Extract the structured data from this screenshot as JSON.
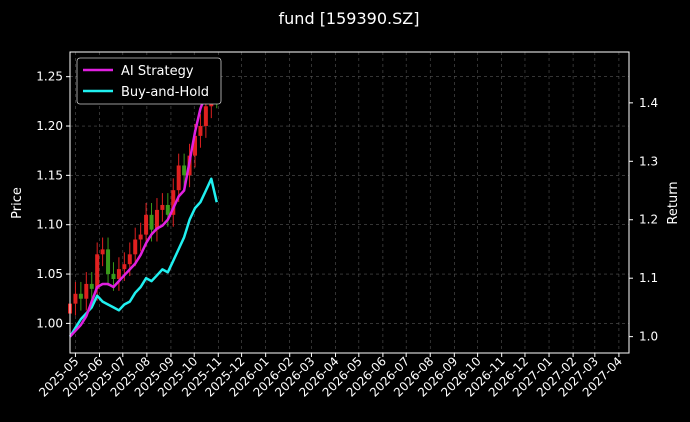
{
  "chart_data": {
    "type": "line",
    "title": "fund [159390.SZ]",
    "ylabel": "Price",
    "y2label": "Return",
    "ylim": [
      0.97,
      1.275
    ],
    "y2lim": [
      0.972,
      1.487
    ],
    "yticks": [
      1.0,
      1.05,
      1.1,
      1.15,
      1.2,
      1.25
    ],
    "y2ticks": [
      1.0,
      1.1,
      1.2,
      1.3,
      1.4
    ],
    "xlim": [
      "2025-04-24",
      "2027-04-14"
    ],
    "xticks": [
      "2025-05",
      "2025-06",
      "2025-07",
      "2025-08",
      "2025-09",
      "2025-10",
      "2025-11",
      "2025-12",
      "2026-01",
      "2026-02",
      "2026-03",
      "2026-04",
      "2026-05",
      "2026-06",
      "2026-07",
      "2026-08",
      "2026-09",
      "2026-10",
      "2026-11",
      "2026-12",
      "2027-01",
      "2027-02",
      "2027-03",
      "2027-04"
    ],
    "grid": true,
    "legend_position": "top-left",
    "colors": {
      "background": "#000000",
      "up": "#e02020",
      "down": "#3a9a1a",
      "ai": "#e020e0",
      "bh": "#20f0f0",
      "grid": "#555555"
    },
    "price_series": {
      "name": "price",
      "x": [
        "2025-04-24",
        "2025-05-01",
        "2025-05-08",
        "2025-05-15",
        "2025-05-22",
        "2025-05-29",
        "2025-06-05",
        "2025-06-12",
        "2025-06-19",
        "2025-06-26",
        "2025-07-03",
        "2025-07-10",
        "2025-07-17",
        "2025-07-24",
        "2025-07-31",
        "2025-08-07",
        "2025-08-14",
        "2025-08-21",
        "2025-08-28",
        "2025-09-04",
        "2025-09-11",
        "2025-09-18",
        "2025-09-25",
        "2025-10-02",
        "2025-10-09",
        "2025-10-16",
        "2025-10-23",
        "2025-10-30"
      ],
      "values": [
        1.02,
        1.03,
        1.025,
        1.04,
        1.035,
        1.07,
        1.075,
        1.05,
        1.045,
        1.055,
        1.06,
        1.07,
        1.085,
        1.09,
        1.11,
        1.095,
        1.115,
        1.12,
        1.11,
        1.135,
        1.16,
        1.15,
        1.17,
        1.19,
        1.2,
        1.22,
        1.24,
        1.23
      ]
    },
    "series": [
      {
        "name": "AI Strategy",
        "x": [
          "2025-04-24",
          "2025-05-01",
          "2025-05-08",
          "2025-05-15",
          "2025-05-22",
          "2025-05-29",
          "2025-06-05",
          "2025-06-12",
          "2025-06-19",
          "2025-06-26",
          "2025-07-03",
          "2025-07-10",
          "2025-07-17",
          "2025-07-24",
          "2025-07-31",
          "2025-08-07",
          "2025-08-14",
          "2025-08-21",
          "2025-08-28",
          "2025-09-04",
          "2025-09-11",
          "2025-09-18",
          "2025-09-25",
          "2025-10-02",
          "2025-10-09",
          "2025-10-16",
          "2025-10-23",
          "2025-10-30"
        ],
        "values": [
          1.0,
          1.01,
          1.02,
          1.035,
          1.06,
          1.085,
          1.09,
          1.09,
          1.085,
          1.095,
          1.105,
          1.115,
          1.125,
          1.14,
          1.16,
          1.175,
          1.185,
          1.19,
          1.2,
          1.22,
          1.24,
          1.25,
          1.3,
          1.35,
          1.39,
          1.415,
          1.44,
          1.45
        ]
      },
      {
        "name": "Buy-and-Hold",
        "x": [
          "2025-04-24",
          "2025-05-01",
          "2025-05-08",
          "2025-05-15",
          "2025-05-22",
          "2025-05-29",
          "2025-06-05",
          "2025-06-12",
          "2025-06-19",
          "2025-06-26",
          "2025-07-03",
          "2025-07-10",
          "2025-07-17",
          "2025-07-24",
          "2025-07-31",
          "2025-08-07",
          "2025-08-14",
          "2025-08-21",
          "2025-08-28",
          "2025-09-04",
          "2025-09-11",
          "2025-09-18",
          "2025-09-25",
          "2025-10-02",
          "2025-10-09",
          "2025-10-16",
          "2025-10-23",
          "2025-10-30"
        ],
        "values": [
          1.0,
          1.015,
          1.03,
          1.04,
          1.05,
          1.07,
          1.06,
          1.055,
          1.05,
          1.045,
          1.055,
          1.06,
          1.075,
          1.085,
          1.1,
          1.095,
          1.105,
          1.115,
          1.11,
          1.13,
          1.15,
          1.17,
          1.2,
          1.22,
          1.23,
          1.25,
          1.27,
          1.23
        ]
      }
    ]
  }
}
